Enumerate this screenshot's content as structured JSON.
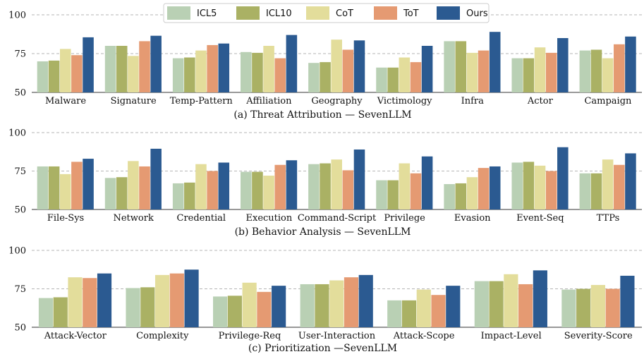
{
  "colors": {
    "ICL5": "#b9d0b4",
    "ICL10": "#aab164",
    "CoT": "#e3dd9b",
    "ToT": "#e59a72",
    "Ours": "#2b5a91"
  },
  "legend": [
    "ICL5",
    "ICL10",
    "CoT",
    "ToT",
    "Ours"
  ],
  "chart_data": [
    {
      "type": "bar",
      "title": "(a) Threat Attribution — SevenLLM",
      "categories": [
        "Malware",
        "Signature",
        "Temp-Pattern",
        "Affiliation",
        "Geography",
        "Victimology",
        "Infra",
        "Actor",
        "Campaign"
      ],
      "series": [
        {
          "name": "ICL5",
          "values": [
            70,
            80,
            72,
            76,
            69,
            66,
            83,
            72,
            77
          ]
        },
        {
          "name": "ICL10",
          "values": [
            70.5,
            80,
            72.5,
            75.5,
            69.5,
            66,
            83,
            72,
            77.5
          ]
        },
        {
          "name": "CoT",
          "values": [
            78,
            73.5,
            77,
            80,
            84,
            72.5,
            75.5,
            79,
            72
          ]
        },
        {
          "name": "ToT",
          "values": [
            74,
            83,
            80.5,
            72,
            77.5,
            69.5,
            77,
            75.5,
            81
          ]
        },
        {
          "name": "Ours",
          "values": [
            85.5,
            86.5,
            81.5,
            87,
            83.5,
            80,
            89,
            85,
            86
          ]
        }
      ],
      "yticks": [
        50,
        75,
        100
      ],
      "ylim": [
        50,
        100
      ]
    },
    {
      "type": "bar",
      "title": "(b) Behavior Analysis — SevenLLM",
      "categories": [
        "File-Sys",
        "Network",
        "Credential",
        "Execution",
        "Command-Script",
        "Privilege",
        "Evasion",
        "Event-Seq",
        "TTPs"
      ],
      "series": [
        {
          "name": "ICL5",
          "values": [
            78,
            70.5,
            67,
            74.5,
            79.5,
            69,
            66.5,
            80.5,
            73.5
          ]
        },
        {
          "name": "ICL10",
          "values": [
            78,
            71,
            67.5,
            74.5,
            80,
            69,
            67,
            81,
            73.5
          ]
        },
        {
          "name": "CoT",
          "values": [
            73,
            81.5,
            79.5,
            72,
            82.5,
            80,
            71,
            78.5,
            82.5
          ]
        },
        {
          "name": "ToT",
          "values": [
            81,
            78,
            75,
            79,
            75.5,
            73.5,
            77,
            75,
            79
          ]
        },
        {
          "name": "Ours",
          "values": [
            83,
            89.5,
            80.5,
            82,
            89,
            84.5,
            78,
            90.5,
            86.5
          ]
        }
      ],
      "yticks": [
        50,
        75,
        100
      ],
      "ylim": [
        50,
        100
      ]
    },
    {
      "type": "bar",
      "title": "(c) Prioritization —SevenLLM",
      "categories": [
        "Attack-Vector",
        "Complexity",
        "Privilege-Req",
        "User-Interaction",
        "Attack-Scope",
        "Impact-Level",
        "Severity-Score"
      ],
      "series": [
        {
          "name": "ICL5",
          "values": [
            69,
            75.5,
            70,
            78,
            67.5,
            80,
            74.5
          ]
        },
        {
          "name": "ICL10",
          "values": [
            69.5,
            76,
            70.5,
            78,
            67.5,
            80,
            75
          ]
        },
        {
          "name": "CoT",
          "values": [
            82.5,
            84,
            79,
            80.5,
            74.5,
            84.5,
            77.5
          ]
        },
        {
          "name": "ToT",
          "values": [
            82,
            85,
            73,
            82.5,
            71,
            78,
            75
          ]
        },
        {
          "name": "Ours",
          "values": [
            85,
            87.5,
            77,
            84,
            77,
            87,
            83.5
          ]
        }
      ],
      "yticks": [
        50,
        75,
        100
      ],
      "ylim": [
        50,
        100
      ]
    }
  ]
}
